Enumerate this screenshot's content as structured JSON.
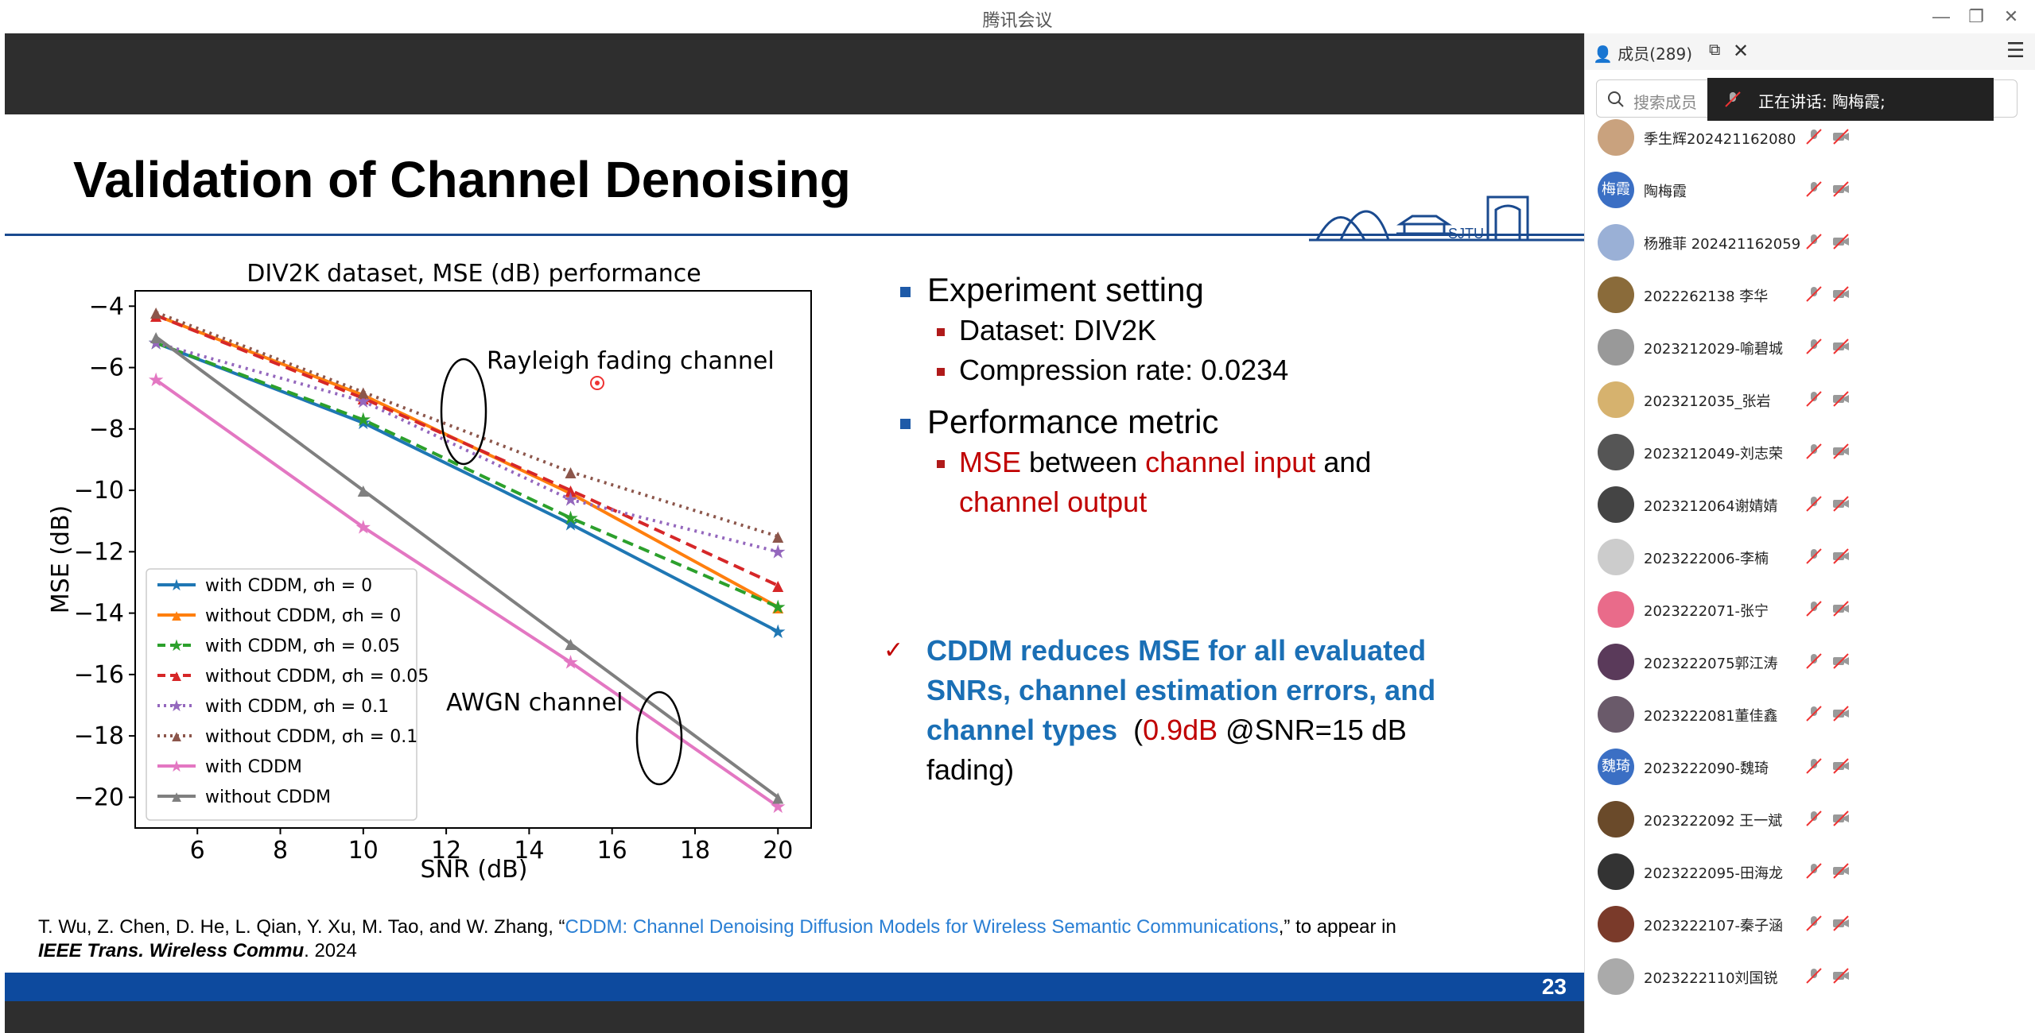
{
  "window": {
    "title": "腾讯会议"
  },
  "slide": {
    "title": "Validation of Channel Denoising",
    "page_number": "23",
    "bullets": [
      {
        "label": "Experiment setting",
        "subs": [
          "Dataset: DIV2K",
          "Compression rate: 0.0234"
        ]
      },
      {
        "label": "Performance metric"
      }
    ],
    "metric_sub": {
      "p1": "MSE",
      "p2": " between ",
      "p3": "channel input",
      "p4": " and",
      "p5": "channel output"
    },
    "conclusion": {
      "bold": "CDDM reduces MSE for all evaluated SNRs, channel estimation errors, and channel types",
      "value": "0.9dB",
      "rest": " @SNR=15 dB fading)"
    },
    "reference": {
      "authors": "T. Wu, Z. Chen, D. He, L. Qian, Y. Xu, M. Tao, and W. Zhang, “",
      "paper": "CDDM: Channel Denoising Diffusion Models for Wireless Semantic Communications",
      "after": ",” to appear in",
      "journal": "IEEE Trans. Wireless Commu",
      "year": ". 2024"
    }
  },
  "chart_data": {
    "type": "line",
    "title": "DIV2K dataset, MSE (dB) performance",
    "xlabel": "SNR (dB)",
    "ylabel": "MSE (dB)",
    "xlim": [
      4.5,
      20.8
    ],
    "ylim": [
      -21,
      -3.5
    ],
    "xticks": [
      6,
      8,
      10,
      12,
      14,
      16,
      18,
      20
    ],
    "yticks": [
      -4,
      -6,
      -8,
      -10,
      -12,
      -14,
      -16,
      -18,
      -20
    ],
    "x": [
      5,
      10,
      15,
      20
    ],
    "annotations": [
      "Rayleigh fading channel",
      "AWGN channel"
    ],
    "legend_position": "lower-left",
    "series": [
      {
        "name": "with CDDM, σh = 0",
        "color": "#1f77b4",
        "dash": "solid",
        "marker": "star",
        "values": [
          -5.2,
          -7.8,
          -11.1,
          -14.6
        ]
      },
      {
        "name": "without CDDM, σh = 0",
        "color": "#ff7f0e",
        "dash": "solid",
        "marker": "triangle",
        "values": [
          -4.3,
          -6.9,
          -10.1,
          -13.8
        ]
      },
      {
        "name": "with CDDM, σh = 0.05",
        "color": "#2ca02c",
        "dash": "dashed",
        "marker": "star",
        "values": [
          -5.2,
          -7.7,
          -10.9,
          -13.8
        ]
      },
      {
        "name": "without CDDM, σh = 0.05",
        "color": "#d62728",
        "dash": "dashed",
        "marker": "triangle",
        "values": [
          -4.3,
          -7.0,
          -10.0,
          -13.1
        ]
      },
      {
        "name": "with CDDM, σh = 0.1",
        "color": "#9467bd",
        "dash": "dotted",
        "marker": "star",
        "values": [
          -5.2,
          -7.1,
          -10.3,
          -12.0
        ]
      },
      {
        "name": "without CDDM, σh = 0.1",
        "color": "#8c564b",
        "dash": "dotted",
        "marker": "triangle",
        "values": [
          -4.2,
          -6.8,
          -9.4,
          -11.5
        ]
      },
      {
        "name": "with CDDM",
        "color": "#e377c2",
        "dash": "solid",
        "marker": "star",
        "values": [
          -6.4,
          -11.2,
          -15.6,
          -20.3
        ]
      },
      {
        "name": "without CDDM",
        "color": "#7f7f7f",
        "dash": "solid",
        "marker": "triangle",
        "values": [
          -5.0,
          -10.0,
          -15.0,
          -20.0
        ]
      }
    ]
  },
  "panel": {
    "tab_label": "成员(289)",
    "search_placeholder": "搜索成员",
    "speaking_label": "正在讲话:  陶梅霞;",
    "members": [
      {
        "name": "季生辉202421162080",
        "avatar": "",
        "color": "#c9a27e"
      },
      {
        "name": "陶梅霞",
        "avatar": "梅霞",
        "color": "#3b6fc4"
      },
      {
        "name": "杨雅菲 202421162059",
        "avatar": "",
        "color": "#9ab0d6"
      },
      {
        "name": "2022262138 李华",
        "avatar": "",
        "color": "#8a6b3a"
      },
      {
        "name": "2023212029-喻碧城",
        "avatar": "",
        "color": "#999"
      },
      {
        "name": "2023212035_张岩",
        "avatar": "",
        "color": "#d6b26e"
      },
      {
        "name": "2023212049-刘志荣",
        "avatar": "",
        "color": "#555"
      },
      {
        "name": "2023212064谢婧婧",
        "avatar": "",
        "color": "#444"
      },
      {
        "name": "2023222006-李楠",
        "avatar": "",
        "color": "#ccc"
      },
      {
        "name": "2023222071-张宁",
        "avatar": "",
        "color": "#e96b8a"
      },
      {
        "name": "2023222075郭江涛",
        "avatar": "",
        "color": "#5a3a5a"
      },
      {
        "name": "2023222081董佳鑫",
        "avatar": "",
        "color": "#6a5a6a"
      },
      {
        "name": "2023222090-魏琦",
        "avatar": "魏琦",
        "color": "#3b6fc4"
      },
      {
        "name": "2023222092 王一斌",
        "avatar": "",
        "color": "#6a4a2a"
      },
      {
        "name": "2023222095-田海龙",
        "avatar": "",
        "color": "#333"
      },
      {
        "name": "2023222107-秦子涵",
        "avatar": "",
        "color": "#7a3a2a"
      },
      {
        "name": "2023222110刘国锐",
        "avatar": "",
        "color": "#aaa"
      }
    ]
  }
}
